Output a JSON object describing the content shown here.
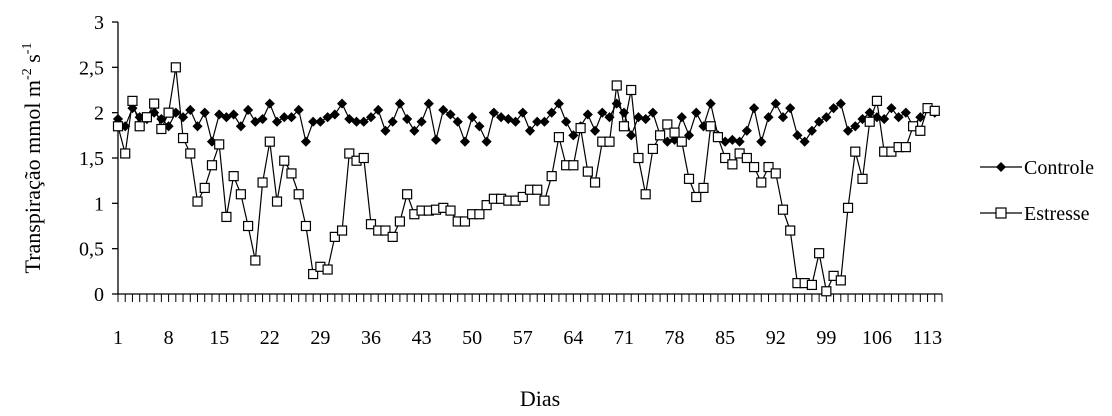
{
  "chart_data": {
    "type": "line",
    "ylabel": "Transpiração mmol m-2 s-1",
    "ylabel_parts": {
      "base": "Transpiração mmol m",
      "sup1": "-2",
      "mid": " s",
      "sup2": "-1"
    },
    "xlabel": "Dias",
    "ylim": [
      0,
      3
    ],
    "xlim": [
      1,
      115
    ],
    "y_ticks": [
      "0",
      "0,5",
      "1",
      "1,5",
      "2",
      "2,5",
      "3"
    ],
    "y_tick_values": [
      0,
      0.5,
      1,
      1.5,
      2,
      2.5,
      3
    ],
    "x_ticks": [
      "1",
      "8",
      "15",
      "22",
      "29",
      "36",
      "43",
      "50",
      "57",
      "64",
      "71",
      "78",
      "85",
      "92",
      "99",
      "106",
      "113"
    ],
    "x_tick_values": [
      1,
      8,
      15,
      22,
      29,
      36,
      43,
      50,
      57,
      64,
      71,
      78,
      85,
      92,
      99,
      106,
      113
    ],
    "grid": false,
    "legend_position": "right",
    "series": [
      {
        "name": "Controle",
        "marker": "filled-diamond",
        "color": "#000000",
        "values": [
          1.93,
          1.85,
          2.05,
          1.95,
          1.93,
          2.0,
          1.93,
          1.85,
          2.0,
          1.95,
          2.03,
          1.85,
          2.0,
          1.68,
          1.98,
          1.95,
          1.98,
          1.85,
          2.03,
          1.9,
          1.93,
          2.1,
          1.9,
          1.95,
          1.95,
          2.03,
          1.68,
          1.9,
          1.9,
          1.95,
          1.98,
          2.1,
          1.93,
          1.9,
          1.9,
          1.95,
          2.03,
          1.8,
          1.9,
          2.1,
          1.93,
          1.8,
          1.9,
          2.1,
          1.7,
          2.03,
          1.98,
          1.9,
          1.68,
          1.95,
          1.85,
          1.68,
          2.0,
          1.95,
          1.93,
          1.9,
          2.0,
          1.8,
          1.9,
          1.9,
          2.0,
          2.1,
          1.9,
          1.75,
          1.85,
          1.98,
          1.8,
          2.0,
          1.95,
          2.1,
          2.0,
          1.75,
          1.95,
          1.93,
          2.0,
          1.75,
          1.68,
          1.7,
          1.95,
          1.75,
          2.0,
          1.85,
          2.1,
          1.75,
          1.68,
          1.7,
          1.68,
          1.8,
          2.05,
          1.68,
          1.95,
          2.1,
          1.95,
          2.05,
          1.75,
          1.68,
          1.8,
          1.9,
          1.95,
          2.05,
          2.1,
          1.8,
          1.85,
          1.93,
          2.0,
          1.95,
          1.93,
          2.05,
          1.95,
          2.0,
          1.85,
          1.95,
          2.05,
          2.0
        ]
      },
      {
        "name": "Estresse",
        "marker": "open-square",
        "color": "#000000",
        "values": [
          1.85,
          1.55,
          2.13,
          1.85,
          1.95,
          2.1,
          1.82,
          2.0,
          2.5,
          1.72,
          1.55,
          1.02,
          1.17,
          1.42,
          1.65,
          0.85,
          1.3,
          1.1,
          0.75,
          0.37,
          1.23,
          1.68,
          1.02,
          1.47,
          1.33,
          1.1,
          0.75,
          0.22,
          0.3,
          0.27,
          0.63,
          0.7,
          1.55,
          1.47,
          1.5,
          0.77,
          0.7,
          0.7,
          0.63,
          0.8,
          1.1,
          0.88,
          0.92,
          0.92,
          0.93,
          0.95,
          0.92,
          0.8,
          0.8,
          0.88,
          0.88,
          0.98,
          1.05,
          1.05,
          1.03,
          1.03,
          1.07,
          1.15,
          1.15,
          1.03,
          1.3,
          1.73,
          1.42,
          1.42,
          1.83,
          1.35,
          1.23,
          1.68,
          1.68,
          2.3,
          1.85,
          2.25,
          1.5,
          1.1,
          1.6,
          1.75,
          1.87,
          1.78,
          1.68,
          1.27,
          1.07,
          1.17,
          1.85,
          1.73,
          1.5,
          1.43,
          1.55,
          1.5,
          1.4,
          1.23,
          1.4,
          1.33,
          0.93,
          0.7,
          0.12,
          0.12,
          0.1,
          0.45,
          0.03,
          0.2,
          0.15,
          0.95,
          1.57,
          1.27,
          1.9,
          2.13,
          1.57,
          1.57,
          1.62,
          1.62,
          1.85,
          1.8,
          2.05,
          2.02
        ]
      }
    ]
  }
}
